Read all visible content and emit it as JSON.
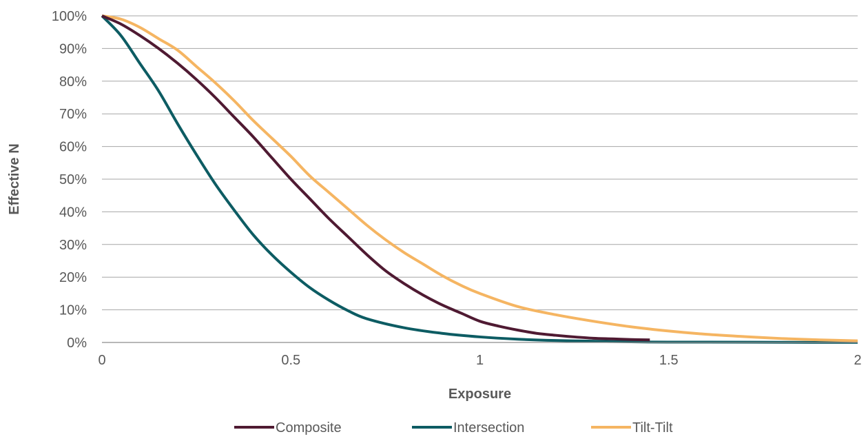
{
  "chart_data": {
    "type": "line",
    "title": "",
    "xlabel": "Exposure",
    "ylabel": "Effective N",
    "xlim": [
      0,
      2
    ],
    "ylim": [
      0,
      1
    ],
    "grid": "horizontal",
    "legend_position": "bottom",
    "x_ticks": [
      0,
      0.5,
      1,
      1.5,
      2
    ],
    "x_tick_labels": [
      "0",
      "0.5",
      "1",
      "1.5",
      "2"
    ],
    "y_ticks": [
      0,
      0.1,
      0.2,
      0.3,
      0.4,
      0.5,
      0.6,
      0.7,
      0.8,
      0.9,
      1.0
    ],
    "y_tick_labels": [
      "0%",
      "10%",
      "20%",
      "30%",
      "40%",
      "50%",
      "60%",
      "70%",
      "80%",
      "90%",
      "100%"
    ],
    "series": [
      {
        "name": "Composite",
        "color": "#4f1a32",
        "x": [
          0,
          0.05,
          0.1,
          0.15,
          0.2,
          0.25,
          0.3,
          0.35,
          0.4,
          0.45,
          0.5,
          0.55,
          0.6,
          0.65,
          0.7,
          0.75,
          0.8,
          0.85,
          0.9,
          0.95,
          1.0,
          1.05,
          1.1,
          1.15,
          1.2,
          1.25,
          1.3,
          1.35,
          1.4,
          1.45
        ],
        "y": [
          1.0,
          0.975,
          0.94,
          0.9,
          0.855,
          0.805,
          0.75,
          0.69,
          0.63,
          0.565,
          0.5,
          0.44,
          0.38,
          0.325,
          0.27,
          0.22,
          0.18,
          0.145,
          0.115,
          0.09,
          0.065,
          0.05,
          0.038,
          0.028,
          0.022,
          0.017,
          0.013,
          0.011,
          0.009,
          0.008
        ]
      },
      {
        "name": "Intersection",
        "color": "#0d5c63",
        "x": [
          0,
          0.05,
          0.1,
          0.15,
          0.2,
          0.25,
          0.3,
          0.35,
          0.4,
          0.45,
          0.5,
          0.55,
          0.6,
          0.65,
          0.7,
          0.8,
          0.9,
          1.0,
          1.1,
          1.2,
          1.3,
          1.4,
          1.5,
          1.6,
          1.8,
          2.0
        ],
        "y": [
          1.0,
          0.94,
          0.855,
          0.77,
          0.67,
          0.575,
          0.485,
          0.405,
          0.33,
          0.268,
          0.215,
          0.168,
          0.13,
          0.098,
          0.073,
          0.045,
          0.028,
          0.017,
          0.01,
          0.006,
          0.004,
          0.002,
          0.001,
          0.001,
          0.0005,
          0.0002
        ]
      },
      {
        "name": "Tilt-Tilt",
        "color": "#f5b562",
        "x": [
          0,
          0.05,
          0.1,
          0.15,
          0.2,
          0.25,
          0.3,
          0.35,
          0.4,
          0.45,
          0.5,
          0.55,
          0.6,
          0.65,
          0.7,
          0.75,
          0.8,
          0.85,
          0.9,
          0.95,
          1.0,
          1.1,
          1.2,
          1.3,
          1.4,
          1.5,
          1.6,
          1.7,
          1.8,
          1.9,
          2.0
        ],
        "y": [
          1.0,
          0.99,
          0.965,
          0.93,
          0.895,
          0.845,
          0.795,
          0.74,
          0.68,
          0.625,
          0.57,
          0.51,
          0.46,
          0.41,
          0.36,
          0.315,
          0.275,
          0.24,
          0.205,
          0.175,
          0.15,
          0.11,
          0.085,
          0.065,
          0.048,
          0.035,
          0.025,
          0.018,
          0.012,
          0.008,
          0.005
        ]
      }
    ]
  },
  "colors": {
    "grid": "#a6a6a6",
    "axis": "#8c8c8c",
    "text": "#595959"
  }
}
